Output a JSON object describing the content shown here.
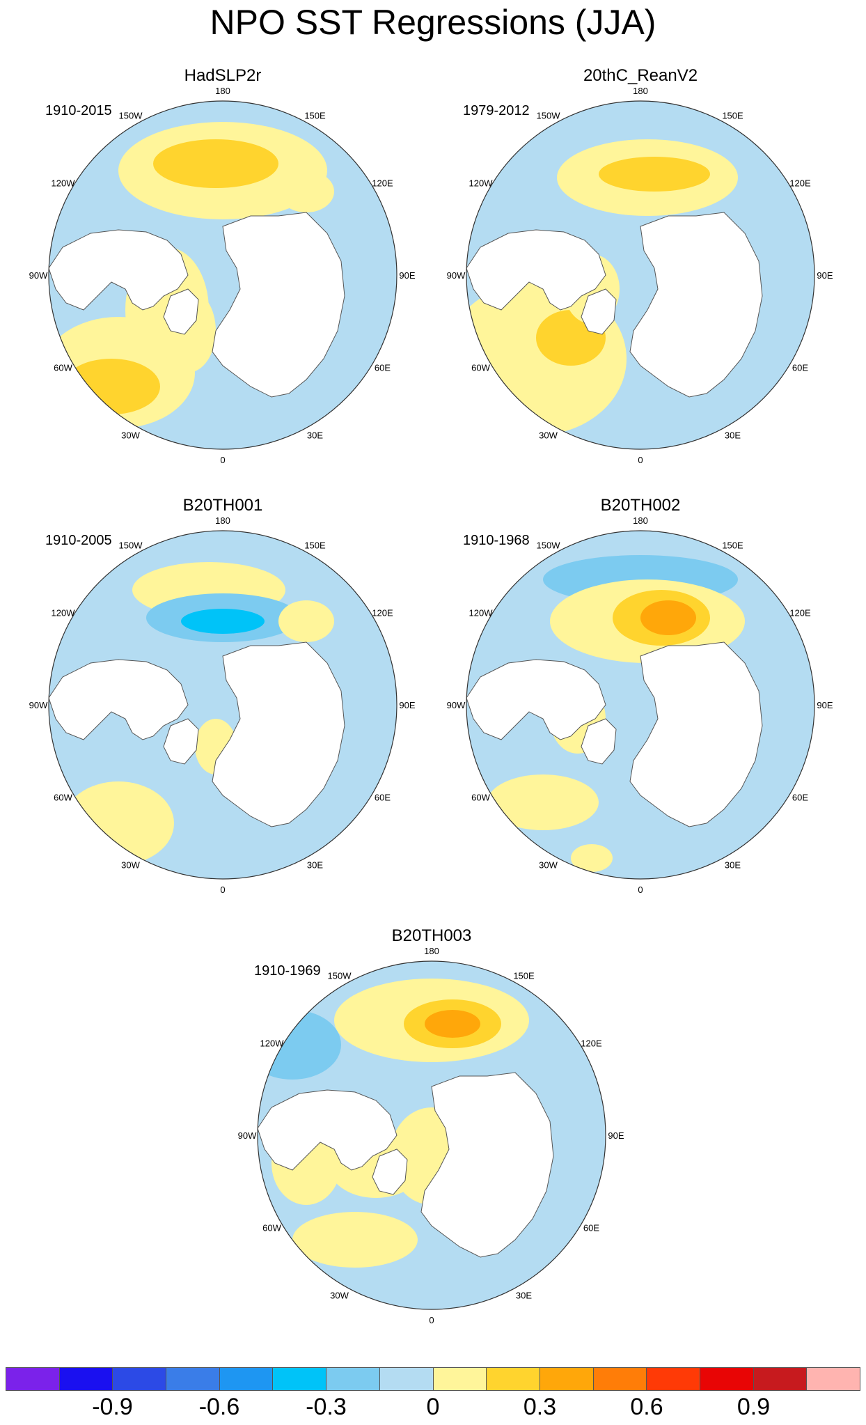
{
  "title": "NPO SST Regressions (JJA)",
  "panels": [
    {
      "id": "hadslp2r",
      "title": "HadSLP2r",
      "period": "1910-2015"
    },
    {
      "id": "20thc",
      "title": "20thC_ReanV2",
      "period": "1979-2012"
    },
    {
      "id": "b20th001",
      "title": "B20TH001",
      "period": "1910-2005"
    },
    {
      "id": "b20th002",
      "title": "B20TH002",
      "period": "1910-1968"
    },
    {
      "id": "b20th003",
      "title": "B20TH003",
      "period": "1910-1969"
    }
  ],
  "longitude_labels": [
    "180",
    "150E",
    "120E",
    "90E",
    "60E",
    "30E",
    "0",
    "30W",
    "60W",
    "90W",
    "120W",
    "150W"
  ],
  "colors": {
    "land": "#ffffff",
    "coast": "#555555",
    "scale": [
      "#7b22ea",
      "#1a10f0",
      "#2c4ae6",
      "#3a7de8",
      "#1e96f2",
      "#00c3f8",
      "#7ccbf0",
      "#b4dcf2",
      "#fff59a",
      "#ffd42e",
      "#ffa70a",
      "#ff7d08",
      "#ff3a06",
      "#e80505",
      "#c71a1e",
      "#ffb4b0"
    ]
  },
  "colorbar": {
    "tick_labels": [
      "-0.9",
      "-0.6",
      "-0.3",
      "0",
      "0.3",
      "0.6",
      "0.9"
    ]
  }
}
